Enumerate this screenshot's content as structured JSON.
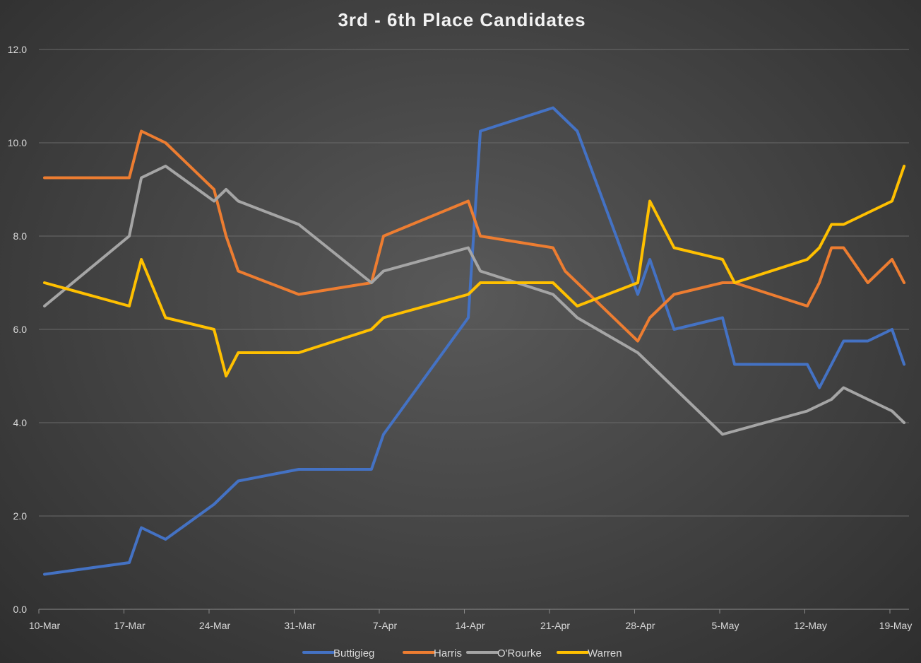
{
  "chart_data": {
    "type": "line",
    "title": "3rd - 6th Place Candidates",
    "xlabel": "",
    "ylabel": "",
    "ylim": [
      0,
      12
    ],
    "y_ticks": [
      "0.0",
      "2.0",
      "4.0",
      "6.0",
      "8.0",
      "10.0",
      "12.0"
    ],
    "y_tick_values": [
      0,
      2,
      4,
      6,
      8,
      10,
      12
    ],
    "x_range_days": [
      0,
      71
    ],
    "x_ticks": [
      {
        "label": "10-Mar",
        "day": 0
      },
      {
        "label": "17-Mar",
        "day": 7
      },
      {
        "label": "24-Mar",
        "day": 14
      },
      {
        "label": "31-Mar",
        "day": 21
      },
      {
        "label": "7-Apr",
        "day": 28
      },
      {
        "label": "14-Apr",
        "day": 35
      },
      {
        "label": "21-Apr",
        "day": 42
      },
      {
        "label": "28-Apr",
        "day": 49
      },
      {
        "label": "5-May",
        "day": 56
      },
      {
        "label": "12-May",
        "day": 63
      },
      {
        "label": "19-May",
        "day": 70
      }
    ],
    "grid": true,
    "legend_position": "bottom",
    "series": [
      {
        "name": "Buttigieg",
        "color": "#4472c4",
        "points": [
          [
            0,
            0.75
          ],
          [
            7,
            1.0
          ],
          [
            8,
            1.75
          ],
          [
            10,
            1.5
          ],
          [
            14,
            2.25
          ],
          [
            15,
            2.5
          ],
          [
            16,
            2.75
          ],
          [
            21,
            3.0
          ],
          [
            27,
            3.0
          ],
          [
            28,
            3.75
          ],
          [
            35,
            6.25
          ],
          [
            36,
            10.25
          ],
          [
            42,
            10.75
          ],
          [
            44,
            10.25
          ],
          [
            49,
            6.75
          ],
          [
            50,
            7.5
          ],
          [
            52,
            6.0
          ],
          [
            56,
            6.25
          ],
          [
            57,
            5.25
          ],
          [
            63,
            5.25
          ],
          [
            64,
            4.75
          ],
          [
            65,
            5.25
          ],
          [
            66,
            5.75
          ],
          [
            68,
            5.75
          ],
          [
            70,
            6.0
          ],
          [
            71,
            5.25
          ]
        ]
      },
      {
        "name": "Harris",
        "color": "#ed7d31",
        "points": [
          [
            0,
            9.25
          ],
          [
            7,
            9.25
          ],
          [
            8,
            10.25
          ],
          [
            10,
            10.0
          ],
          [
            14,
            9.0
          ],
          [
            15,
            8.0
          ],
          [
            16,
            7.25
          ],
          [
            21,
            6.75
          ],
          [
            27,
            7.0
          ],
          [
            28,
            8.0
          ],
          [
            35,
            8.75
          ],
          [
            36,
            8.0
          ],
          [
            42,
            7.75
          ],
          [
            43,
            7.25
          ],
          [
            49,
            5.75
          ],
          [
            50,
            6.25
          ],
          [
            52,
            6.75
          ],
          [
            56,
            7.0
          ],
          [
            57,
            7.0
          ],
          [
            63,
            6.5
          ],
          [
            64,
            7.0
          ],
          [
            65,
            7.75
          ],
          [
            66,
            7.75
          ],
          [
            68,
            7.0
          ],
          [
            70,
            7.5
          ],
          [
            71,
            7.0
          ]
        ]
      },
      {
        "name": "O'Rourke",
        "color": "#a5a5a5",
        "points": [
          [
            0,
            6.5
          ],
          [
            7,
            8.0
          ],
          [
            8,
            9.25
          ],
          [
            10,
            9.5
          ],
          [
            14,
            8.75
          ],
          [
            15,
            9.0
          ],
          [
            16,
            8.75
          ],
          [
            21,
            8.25
          ],
          [
            27,
            7.0
          ],
          [
            28,
            7.25
          ],
          [
            35,
            7.75
          ],
          [
            36,
            7.25
          ],
          [
            42,
            6.75
          ],
          [
            44,
            6.25
          ],
          [
            49,
            5.5
          ],
          [
            52,
            4.75
          ],
          [
            55,
            4.0
          ],
          [
            56,
            3.75
          ],
          [
            63,
            4.25
          ],
          [
            65,
            4.5
          ],
          [
            66,
            4.75
          ],
          [
            68,
            4.5
          ],
          [
            70,
            4.25
          ],
          [
            71,
            4.0
          ]
        ]
      },
      {
        "name": "Warren",
        "color": "#ffc000",
        "points": [
          [
            0,
            7.0
          ],
          [
            7,
            6.5
          ],
          [
            8,
            7.5
          ],
          [
            10,
            6.25
          ],
          [
            14,
            6.0
          ],
          [
            15,
            5.0
          ],
          [
            16,
            5.5
          ],
          [
            21,
            5.5
          ],
          [
            27,
            6.0
          ],
          [
            28,
            6.25
          ],
          [
            35,
            6.75
          ],
          [
            36,
            7.0
          ],
          [
            42,
            7.0
          ],
          [
            44,
            6.5
          ],
          [
            49,
            7.0
          ],
          [
            50,
            8.75
          ],
          [
            52,
            7.75
          ],
          [
            56,
            7.5
          ],
          [
            57,
            7.0
          ],
          [
            63,
            7.5
          ],
          [
            64,
            7.75
          ],
          [
            65,
            8.25
          ],
          [
            66,
            8.25
          ],
          [
            68,
            8.5
          ],
          [
            70,
            8.75
          ],
          [
            71,
            9.5
          ]
        ]
      }
    ]
  }
}
